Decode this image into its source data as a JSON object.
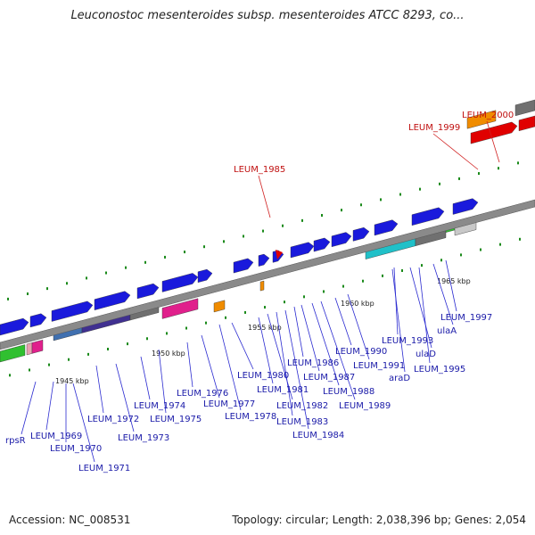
{
  "header": {
    "title": "Leuconostoc mesenteroides subsp. mesenteroides ATCC 8293, co..."
  },
  "footer": {
    "accession": "Accession: NC_008531",
    "summary": "Topology: circular; Length: 2,038,396 bp; Genes: 2,054"
  },
  "colors": {
    "backbone": "#888888",
    "forward_gene": "#1a1adc",
    "red_gene": "#e00000",
    "orange_gene": "#f08c00",
    "gray_gene": "#707070",
    "magenta_gene": "#e0208c",
    "cyan_gene": "#20c0c8",
    "green_gene": "#30c030",
    "tick": "#1a8a1a",
    "label_blue": "#1a1aa8",
    "label_red": "#c01010"
  },
  "kbp_ticks": [
    "1945 kbp",
    "1950 kbp",
    "1955 kbp",
    "1960 kbp",
    "1965 kbp"
  ],
  "labels_red": [
    "LEUM_1985",
    "LEUM_1999",
    "LEUM_2000"
  ],
  "labels_blue": [
    "rpsR",
    "LEUM_1969",
    "LEUM_1970",
    "LEUM_1971",
    "LEUM_1972",
    "LEUM_1973",
    "LEUM_1974",
    "LEUM_1975",
    "LEUM_1976",
    "LEUM_1977",
    "LEUM_1978",
    "LEUM_1980",
    "LEUM_1981",
    "LEUM_1982",
    "LEUM_1983",
    "LEUM_1984",
    "LEUM_1986",
    "LEUM_1987",
    "LEUM_1988",
    "LEUM_1989",
    "LEUM_1990",
    "LEUM_1991",
    "araD",
    "LEUM_1993",
    "ulaD",
    "LEUM_1995",
    "ulaA",
    "LEUM_1997"
  ]
}
